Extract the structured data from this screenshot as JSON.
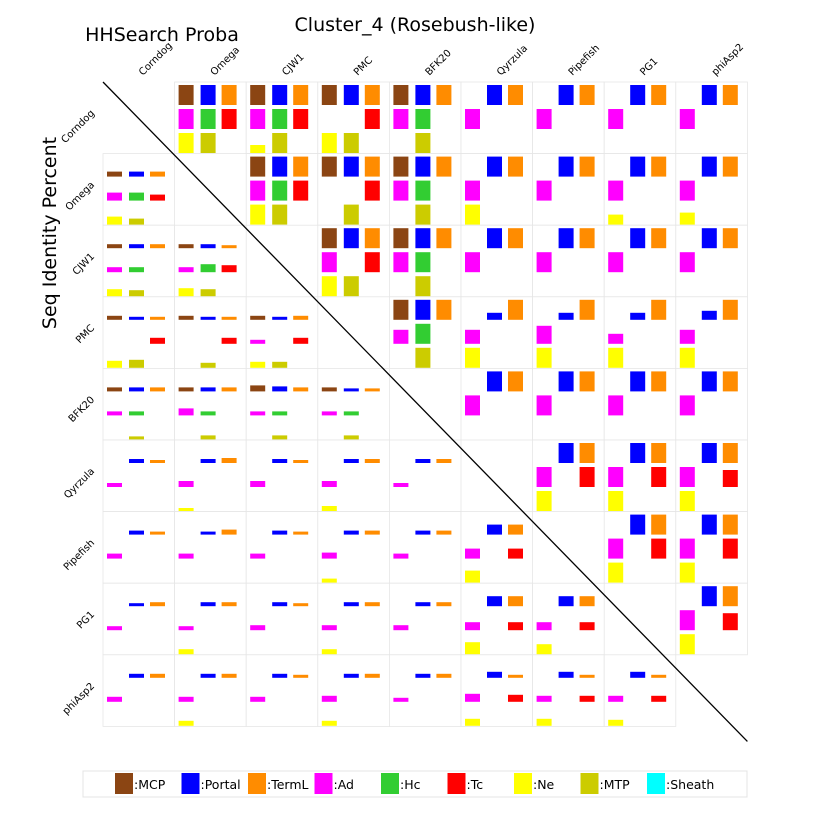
{
  "chart_data": {
    "type": "heatmap",
    "title": "Cluster_4 (Rosebush-like)",
    "upper_label": "HHSearch Proba",
    "lower_label": "Seq Identity Percent",
    "genomes": [
      "Corndog",
      "Omega",
      "CJW1",
      "PMC",
      "BFK20",
      "Qyrzula",
      "Pipefish",
      "PG1",
      "phiAsp2"
    ],
    "features": [
      {
        "name": "MCP",
        "label": ":MCP",
        "color": "#8B4513"
      },
      {
        "name": "Portal",
        "label": ":Portal",
        "color": "#0000FF"
      },
      {
        "name": "TermL",
        "label": ":TermL",
        "color": "#FF8C00"
      },
      {
        "name": "Ad",
        "label": ":Ad",
        "color": "#FF00FF"
      },
      {
        "name": "Hc",
        "label": ":Hc",
        "color": "#32CD32"
      },
      {
        "name": "Tc",
        "label": ":Tc",
        "color": "#FF0000"
      },
      {
        "name": "Ne",
        "label": ":Ne",
        "color": "#FFFF00"
      },
      {
        "name": "MTP",
        "label": ":MTP",
        "color": "#CCCC00"
      },
      {
        "name": "Sheath",
        "label": ":Sheath",
        "color": "#00FFFF"
      }
    ],
    "upper": [
      {
        "r": 0,
        "c": 1,
        "v": [
          1,
          1,
          1,
          1,
          1,
          1,
          1,
          1,
          0
        ]
      },
      {
        "r": 0,
        "c": 2,
        "v": [
          1,
          1,
          1,
          1,
          1,
          1,
          0.4,
          1,
          0
        ]
      },
      {
        "r": 0,
        "c": 3,
        "v": [
          1,
          1,
          1,
          0,
          0,
          1,
          1,
          1,
          0
        ]
      },
      {
        "r": 0,
        "c": 4,
        "v": [
          1,
          1,
          1,
          1,
          1,
          0,
          0,
          1,
          0
        ]
      },
      {
        "r": 0,
        "c": 5,
        "v": [
          0,
          1,
          1,
          1,
          0,
          0,
          0,
          0,
          0
        ]
      },
      {
        "r": 0,
        "c": 6,
        "v": [
          0,
          1,
          1,
          1,
          0,
          0,
          0,
          0,
          0
        ]
      },
      {
        "r": 0,
        "c": 7,
        "v": [
          0,
          1,
          1,
          1,
          0,
          0,
          0,
          0,
          0
        ]
      },
      {
        "r": 0,
        "c": 8,
        "v": [
          0,
          1,
          1,
          1,
          0,
          0,
          0,
          0,
          0
        ]
      },
      {
        "r": 1,
        "c": 2,
        "v": [
          1,
          1,
          1,
          1,
          1,
          1,
          1,
          1,
          0
        ]
      },
      {
        "r": 1,
        "c": 3,
        "v": [
          1,
          1,
          1,
          0,
          0,
          1,
          0,
          1,
          0
        ]
      },
      {
        "r": 1,
        "c": 4,
        "v": [
          1,
          1,
          1,
          1,
          1,
          0,
          0,
          1,
          0
        ]
      },
      {
        "r": 1,
        "c": 5,
        "v": [
          0,
          1,
          1,
          1,
          0,
          0,
          1,
          0,
          0
        ]
      },
      {
        "r": 1,
        "c": 6,
        "v": [
          0,
          1,
          1,
          1,
          0,
          0,
          0,
          0,
          0
        ]
      },
      {
        "r": 1,
        "c": 7,
        "v": [
          0,
          1,
          1,
          1,
          0,
          0,
          0.5,
          0,
          0
        ]
      },
      {
        "r": 1,
        "c": 8,
        "v": [
          0,
          1,
          1,
          1,
          0,
          0,
          0.6,
          0,
          0
        ]
      },
      {
        "r": 2,
        "c": 3,
        "v": [
          1,
          1,
          1,
          1,
          0,
          1,
          1,
          1,
          0
        ]
      },
      {
        "r": 2,
        "c": 4,
        "v": [
          1,
          1,
          1,
          1,
          1,
          0,
          0,
          1,
          0
        ]
      },
      {
        "r": 2,
        "c": 5,
        "v": [
          0,
          1,
          1,
          1,
          0,
          0,
          0,
          0,
          0
        ]
      },
      {
        "r": 2,
        "c": 6,
        "v": [
          0,
          1,
          1,
          1,
          0,
          0,
          0,
          0,
          0
        ]
      },
      {
        "r": 2,
        "c": 7,
        "v": [
          0,
          1,
          1,
          1,
          0,
          0,
          0,
          0,
          0
        ]
      },
      {
        "r": 2,
        "c": 8,
        "v": [
          0,
          1,
          1,
          1,
          0,
          0,
          0,
          0,
          0
        ]
      },
      {
        "r": 3,
        "c": 4,
        "v": [
          1,
          1,
          1,
          0.7,
          1,
          0,
          0,
          1,
          0
        ]
      },
      {
        "r": 3,
        "c": 5,
        "v": [
          0,
          0.35,
          1,
          0.7,
          0,
          0,
          1,
          0,
          0
        ]
      },
      {
        "r": 3,
        "c": 6,
        "v": [
          0,
          0.35,
          1,
          0.9,
          0,
          0,
          1,
          0,
          0
        ]
      },
      {
        "r": 3,
        "c": 7,
        "v": [
          0,
          0.35,
          1,
          0.5,
          0,
          0,
          1,
          0,
          0
        ]
      },
      {
        "r": 3,
        "c": 8,
        "v": [
          0,
          0.45,
          1,
          0.7,
          0,
          0,
          1,
          0,
          0
        ]
      },
      {
        "r": 4,
        "c": 5,
        "v": [
          0,
          1,
          1,
          1,
          0,
          0,
          0,
          0,
          0
        ]
      },
      {
        "r": 4,
        "c": 6,
        "v": [
          0,
          1,
          1,
          1,
          0,
          0,
          0,
          0,
          0
        ]
      },
      {
        "r": 4,
        "c": 7,
        "v": [
          0,
          1,
          1,
          1,
          0,
          0,
          0,
          0,
          0
        ]
      },
      {
        "r": 4,
        "c": 8,
        "v": [
          0,
          1,
          1,
          1,
          0,
          0,
          0,
          0,
          0
        ]
      },
      {
        "r": 5,
        "c": 6,
        "v": [
          0,
          1,
          1,
          1,
          0,
          1,
          1,
          0,
          0
        ]
      },
      {
        "r": 5,
        "c": 7,
        "v": [
          0,
          1,
          1,
          1,
          0,
          1,
          1,
          0,
          0
        ]
      },
      {
        "r": 5,
        "c": 8,
        "v": [
          0,
          1,
          1,
          1,
          0,
          0.85,
          1,
          0,
          0
        ]
      },
      {
        "r": 6,
        "c": 7,
        "v": [
          0,
          1,
          1,
          1,
          0,
          1,
          1,
          0,
          0
        ]
      },
      {
        "r": 6,
        "c": 8,
        "v": [
          0,
          1,
          1,
          1,
          0,
          1,
          1,
          0,
          0
        ]
      },
      {
        "r": 7,
        "c": 8,
        "v": [
          0,
          1,
          1,
          1,
          0,
          0.85,
          1,
          0,
          0
        ]
      }
    ],
    "lower": [
      {
        "r": 1,
        "c": 0,
        "v": [
          0.25,
          0.25,
          0.25,
          0.4,
          0.4,
          0.3,
          0.4,
          0.3,
          0
        ]
      },
      {
        "r": 2,
        "c": 0,
        "v": [
          0.2,
          0.2,
          0.2,
          0.25,
          0.25,
          0,
          0.35,
          0.3,
          0
        ]
      },
      {
        "r": 2,
        "c": 1,
        "v": [
          0.2,
          0.2,
          0.15,
          0.25,
          0.4,
          0.35,
          0.4,
          0.35,
          0
        ]
      },
      {
        "r": 3,
        "c": 0,
        "v": [
          0.2,
          0.15,
          0.15,
          0,
          0,
          0.3,
          0.35,
          0.4,
          0
        ]
      },
      {
        "r": 3,
        "c": 1,
        "v": [
          0.2,
          0.15,
          0.15,
          0,
          0,
          0.3,
          0,
          0.25,
          0
        ]
      },
      {
        "r": 3,
        "c": 2,
        "v": [
          0.2,
          0.15,
          0.2,
          0.2,
          0,
          0.3,
          0.3,
          0.3,
          0
        ]
      },
      {
        "r": 4,
        "c": 0,
        "v": [
          0.2,
          0.2,
          0.2,
          0.2,
          0.2,
          0,
          0,
          0.15,
          0
        ]
      },
      {
        "r": 4,
        "c": 1,
        "v": [
          0.2,
          0.2,
          0.2,
          0.35,
          0.2,
          0,
          0,
          0.2,
          0
        ]
      },
      {
        "r": 4,
        "c": 2,
        "v": [
          0.3,
          0.25,
          0.2,
          0.2,
          0.2,
          0,
          0,
          0.2,
          0
        ]
      },
      {
        "r": 4,
        "c": 3,
        "v": [
          0.2,
          0.15,
          0.15,
          0.2,
          0.2,
          0,
          0,
          0.2,
          0
        ]
      },
      {
        "r": 5,
        "c": 0,
        "v": [
          0,
          0.2,
          0.15,
          0.2,
          0,
          0,
          0,
          0,
          0
        ]
      },
      {
        "r": 5,
        "c": 1,
        "v": [
          0,
          0.2,
          0.25,
          0.3,
          0,
          0,
          0.15,
          0,
          0
        ]
      },
      {
        "r": 5,
        "c": 2,
        "v": [
          0,
          0.2,
          0.15,
          0.3,
          0,
          0,
          0,
          0,
          0
        ]
      },
      {
        "r": 5,
        "c": 3,
        "v": [
          0,
          0.2,
          0.2,
          0.3,
          0,
          0,
          0.25,
          0,
          0
        ]
      },
      {
        "r": 5,
        "c": 4,
        "v": [
          0,
          0.2,
          0.2,
          0.2,
          0,
          0,
          0,
          0,
          0
        ]
      },
      {
        "r": 6,
        "c": 0,
        "v": [
          0,
          0.2,
          0.15,
          0.25,
          0,
          0,
          0,
          0,
          0
        ]
      },
      {
        "r": 6,
        "c": 1,
        "v": [
          0,
          0.15,
          0.25,
          0.25,
          0,
          0,
          0,
          0,
          0
        ]
      },
      {
        "r": 6,
        "c": 2,
        "v": [
          0,
          0.2,
          0.15,
          0.25,
          0,
          0,
          0,
          0,
          0
        ]
      },
      {
        "r": 6,
        "c": 3,
        "v": [
          0,
          0.2,
          0.2,
          0.3,
          0,
          0,
          0.2,
          0,
          0
        ]
      },
      {
        "r": 6,
        "c": 4,
        "v": [
          0,
          0.2,
          0.2,
          0.25,
          0,
          0,
          0,
          0,
          0
        ]
      },
      {
        "r": 6,
        "c": 5,
        "v": [
          0,
          0.5,
          0.5,
          0.5,
          0,
          0.5,
          0.6,
          0,
          0
        ]
      },
      {
        "r": 7,
        "c": 0,
        "v": [
          0,
          0.15,
          0.2,
          0.2,
          0,
          0,
          0,
          0,
          0
        ]
      },
      {
        "r": 7,
        "c": 1,
        "v": [
          0,
          0.2,
          0.2,
          0.2,
          0,
          0,
          0.25,
          0,
          0
        ]
      },
      {
        "r": 7,
        "c": 2,
        "v": [
          0,
          0.2,
          0.15,
          0.25,
          0,
          0,
          0,
          0,
          0
        ]
      },
      {
        "r": 7,
        "c": 3,
        "v": [
          0,
          0.2,
          0.2,
          0.25,
          0,
          0,
          0.25,
          0,
          0
        ]
      },
      {
        "r": 7,
        "c": 4,
        "v": [
          0,
          0.2,
          0.2,
          0.25,
          0,
          0,
          0,
          0,
          0
        ]
      },
      {
        "r": 7,
        "c": 5,
        "v": [
          0,
          0.5,
          0.5,
          0.4,
          0,
          0.4,
          0.6,
          0,
          0
        ]
      },
      {
        "r": 7,
        "c": 6,
        "v": [
          0,
          0.5,
          0.5,
          0.4,
          0,
          0.4,
          0.5,
          0,
          0
        ]
      },
      {
        "r": 8,
        "c": 0,
        "v": [
          0,
          0.2,
          0.2,
          0.25,
          0,
          0,
          0,
          0,
          0
        ]
      },
      {
        "r": 8,
        "c": 1,
        "v": [
          0,
          0.2,
          0.2,
          0.25,
          0,
          0,
          0.25,
          0,
          0
        ]
      },
      {
        "r": 8,
        "c": 2,
        "v": [
          0,
          0.2,
          0.15,
          0.25,
          0,
          0,
          0,
          0,
          0
        ]
      },
      {
        "r": 8,
        "c": 3,
        "v": [
          0,
          0.2,
          0.2,
          0.3,
          0,
          0,
          0.25,
          0,
          0
        ]
      },
      {
        "r": 8,
        "c": 4,
        "v": [
          0,
          0.2,
          0.2,
          0.2,
          0,
          0,
          0,
          0,
          0
        ]
      },
      {
        "r": 8,
        "c": 5,
        "v": [
          0,
          0.3,
          0.15,
          0.4,
          0,
          0.35,
          0.35,
          0,
          0
        ]
      },
      {
        "r": 8,
        "c": 6,
        "v": [
          0,
          0.3,
          0.15,
          0.3,
          0,
          0.3,
          0.35,
          0,
          0
        ]
      },
      {
        "r": 8,
        "c": 7,
        "v": [
          0,
          0.3,
          0.15,
          0.3,
          0,
          0.3,
          0.3,
          0,
          0
        ]
      }
    ]
  }
}
